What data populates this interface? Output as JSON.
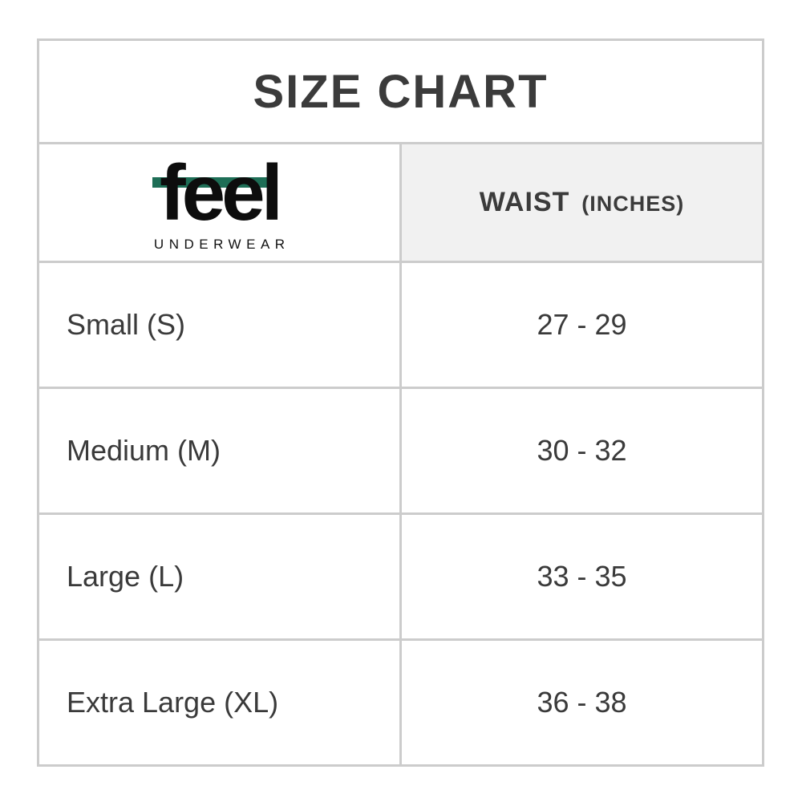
{
  "title": "SIZE CHART",
  "brand": {
    "wordmark": "feel",
    "sub_label": "UNDERWEAR"
  },
  "header": {
    "waist_label": "WAIST",
    "waist_unit": "(INCHES)"
  },
  "rows": [
    {
      "size": "Small (S)",
      "waist": "27 - 29"
    },
    {
      "size": "Medium (M)",
      "waist": "30 - 32"
    },
    {
      "size": "Large (L)",
      "waist": "33 - 35"
    },
    {
      "size": "Extra Large (XL)",
      "waist": "36 - 38"
    }
  ],
  "colors": {
    "accent_green": "#1e6e56",
    "border": "#cccccc",
    "header_bg": "#f1f1f1",
    "text": "#3a3a3a"
  }
}
